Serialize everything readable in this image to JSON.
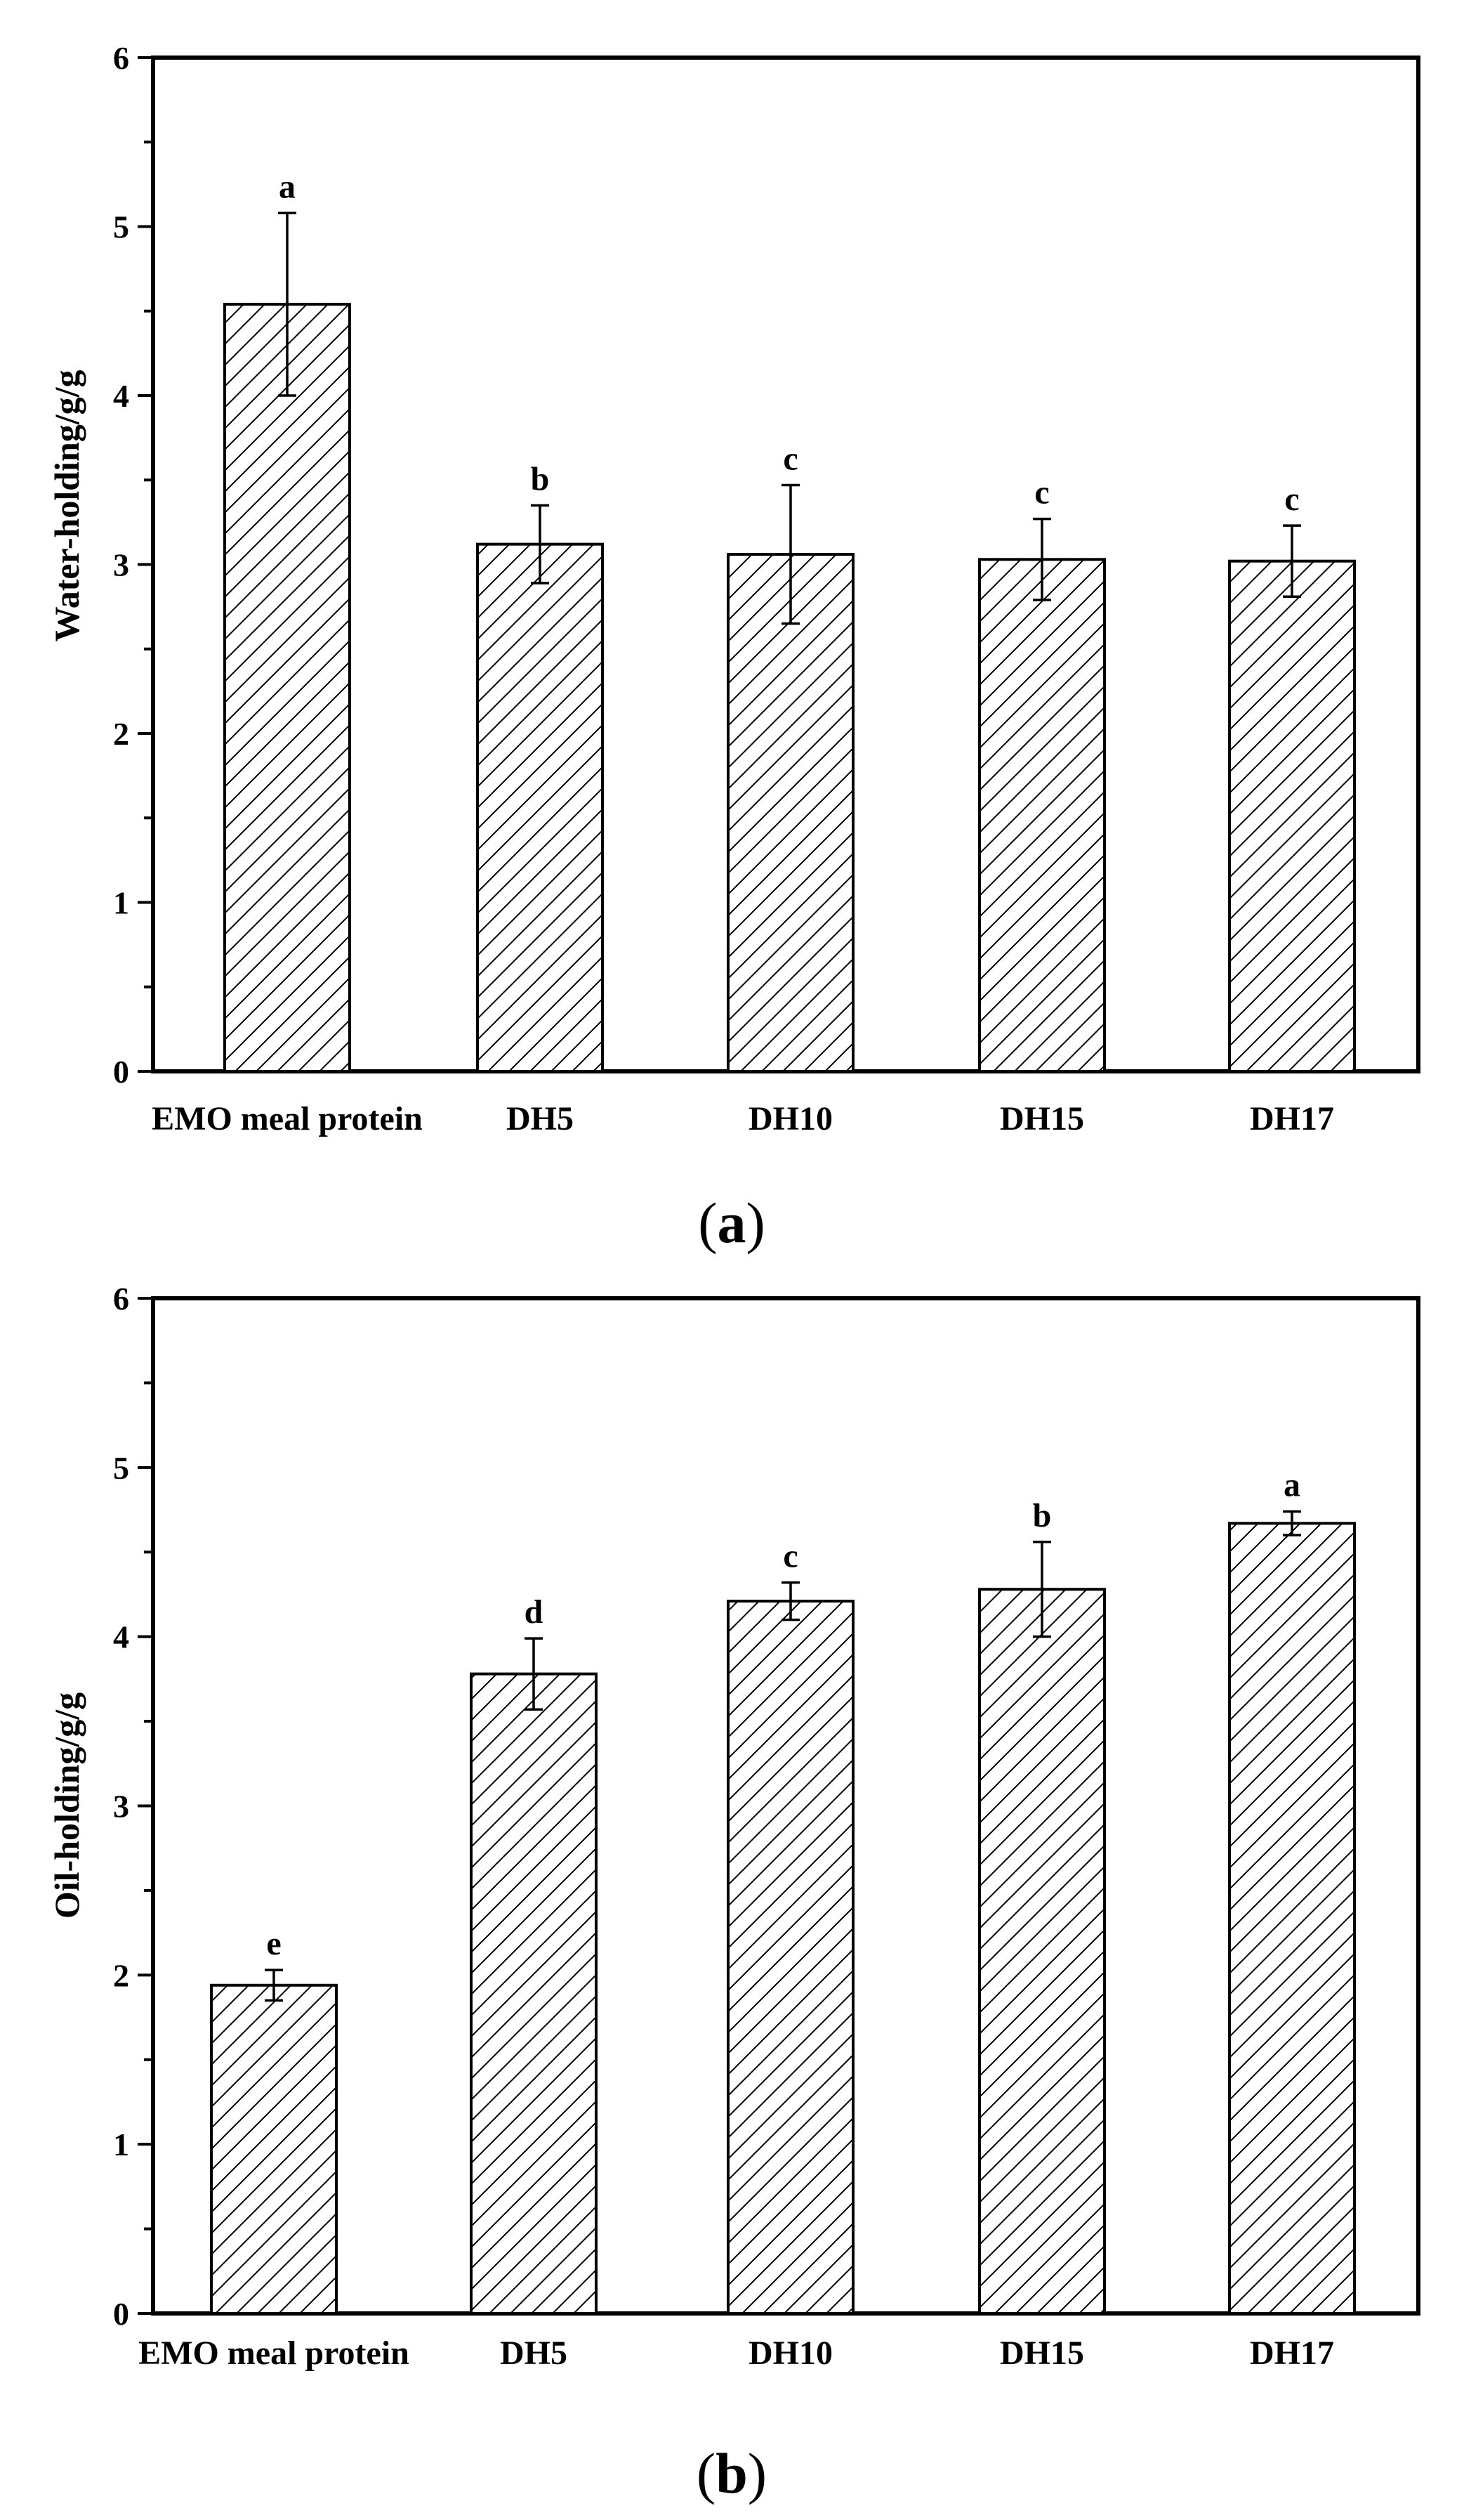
{
  "chart_data": [
    {
      "type": "bar",
      "panel_label": "a",
      "title": "",
      "xlabel": "",
      "ylabel": "Water-holding/g/g",
      "ylim": [
        0,
        6
      ],
      "yticks": [
        0,
        1,
        2,
        3,
        4,
        5,
        6
      ],
      "categories": [
        "EMO meal protein",
        "DH5",
        "DH10",
        "DH15",
        "DH17"
      ],
      "series": [
        {
          "name": "Water-holding",
          "values": [
            4.54,
            3.12,
            3.06,
            3.03,
            3.02
          ],
          "errors": [
            0.54,
            0.23,
            0.41,
            0.24,
            0.21
          ],
          "significance": [
            "a",
            "b",
            "c",
            "c",
            "c"
          ]
        }
      ],
      "grid": false,
      "bar_pattern": "diagonal-hatch",
      "colors": {
        "bar_fill": "#ffffff",
        "hatch": "#000000",
        "axis": "#000000"
      }
    },
    {
      "type": "bar",
      "panel_label": "b",
      "title": "",
      "xlabel": "",
      "ylabel": "Oil-holding/g/g",
      "ylim": [
        0,
        6
      ],
      "yticks": [
        0,
        1,
        2,
        3,
        4,
        5,
        6
      ],
      "categories": [
        "EMO meal protein",
        "DH5",
        "DH10",
        "DH15",
        "DH17"
      ],
      "series": [
        {
          "name": "Oil-holding",
          "values": [
            1.94,
            3.78,
            4.21,
            4.28,
            4.67
          ],
          "errors": [
            0.09,
            0.21,
            0.11,
            0.28,
            0.07
          ],
          "significance": [
            "e",
            "d",
            "c",
            "b",
            "a"
          ]
        }
      ],
      "grid": false,
      "bar_pattern": "diagonal-hatch",
      "colors": {
        "bar_fill": "#ffffff",
        "hatch": "#000000",
        "axis": "#000000"
      }
    }
  ]
}
